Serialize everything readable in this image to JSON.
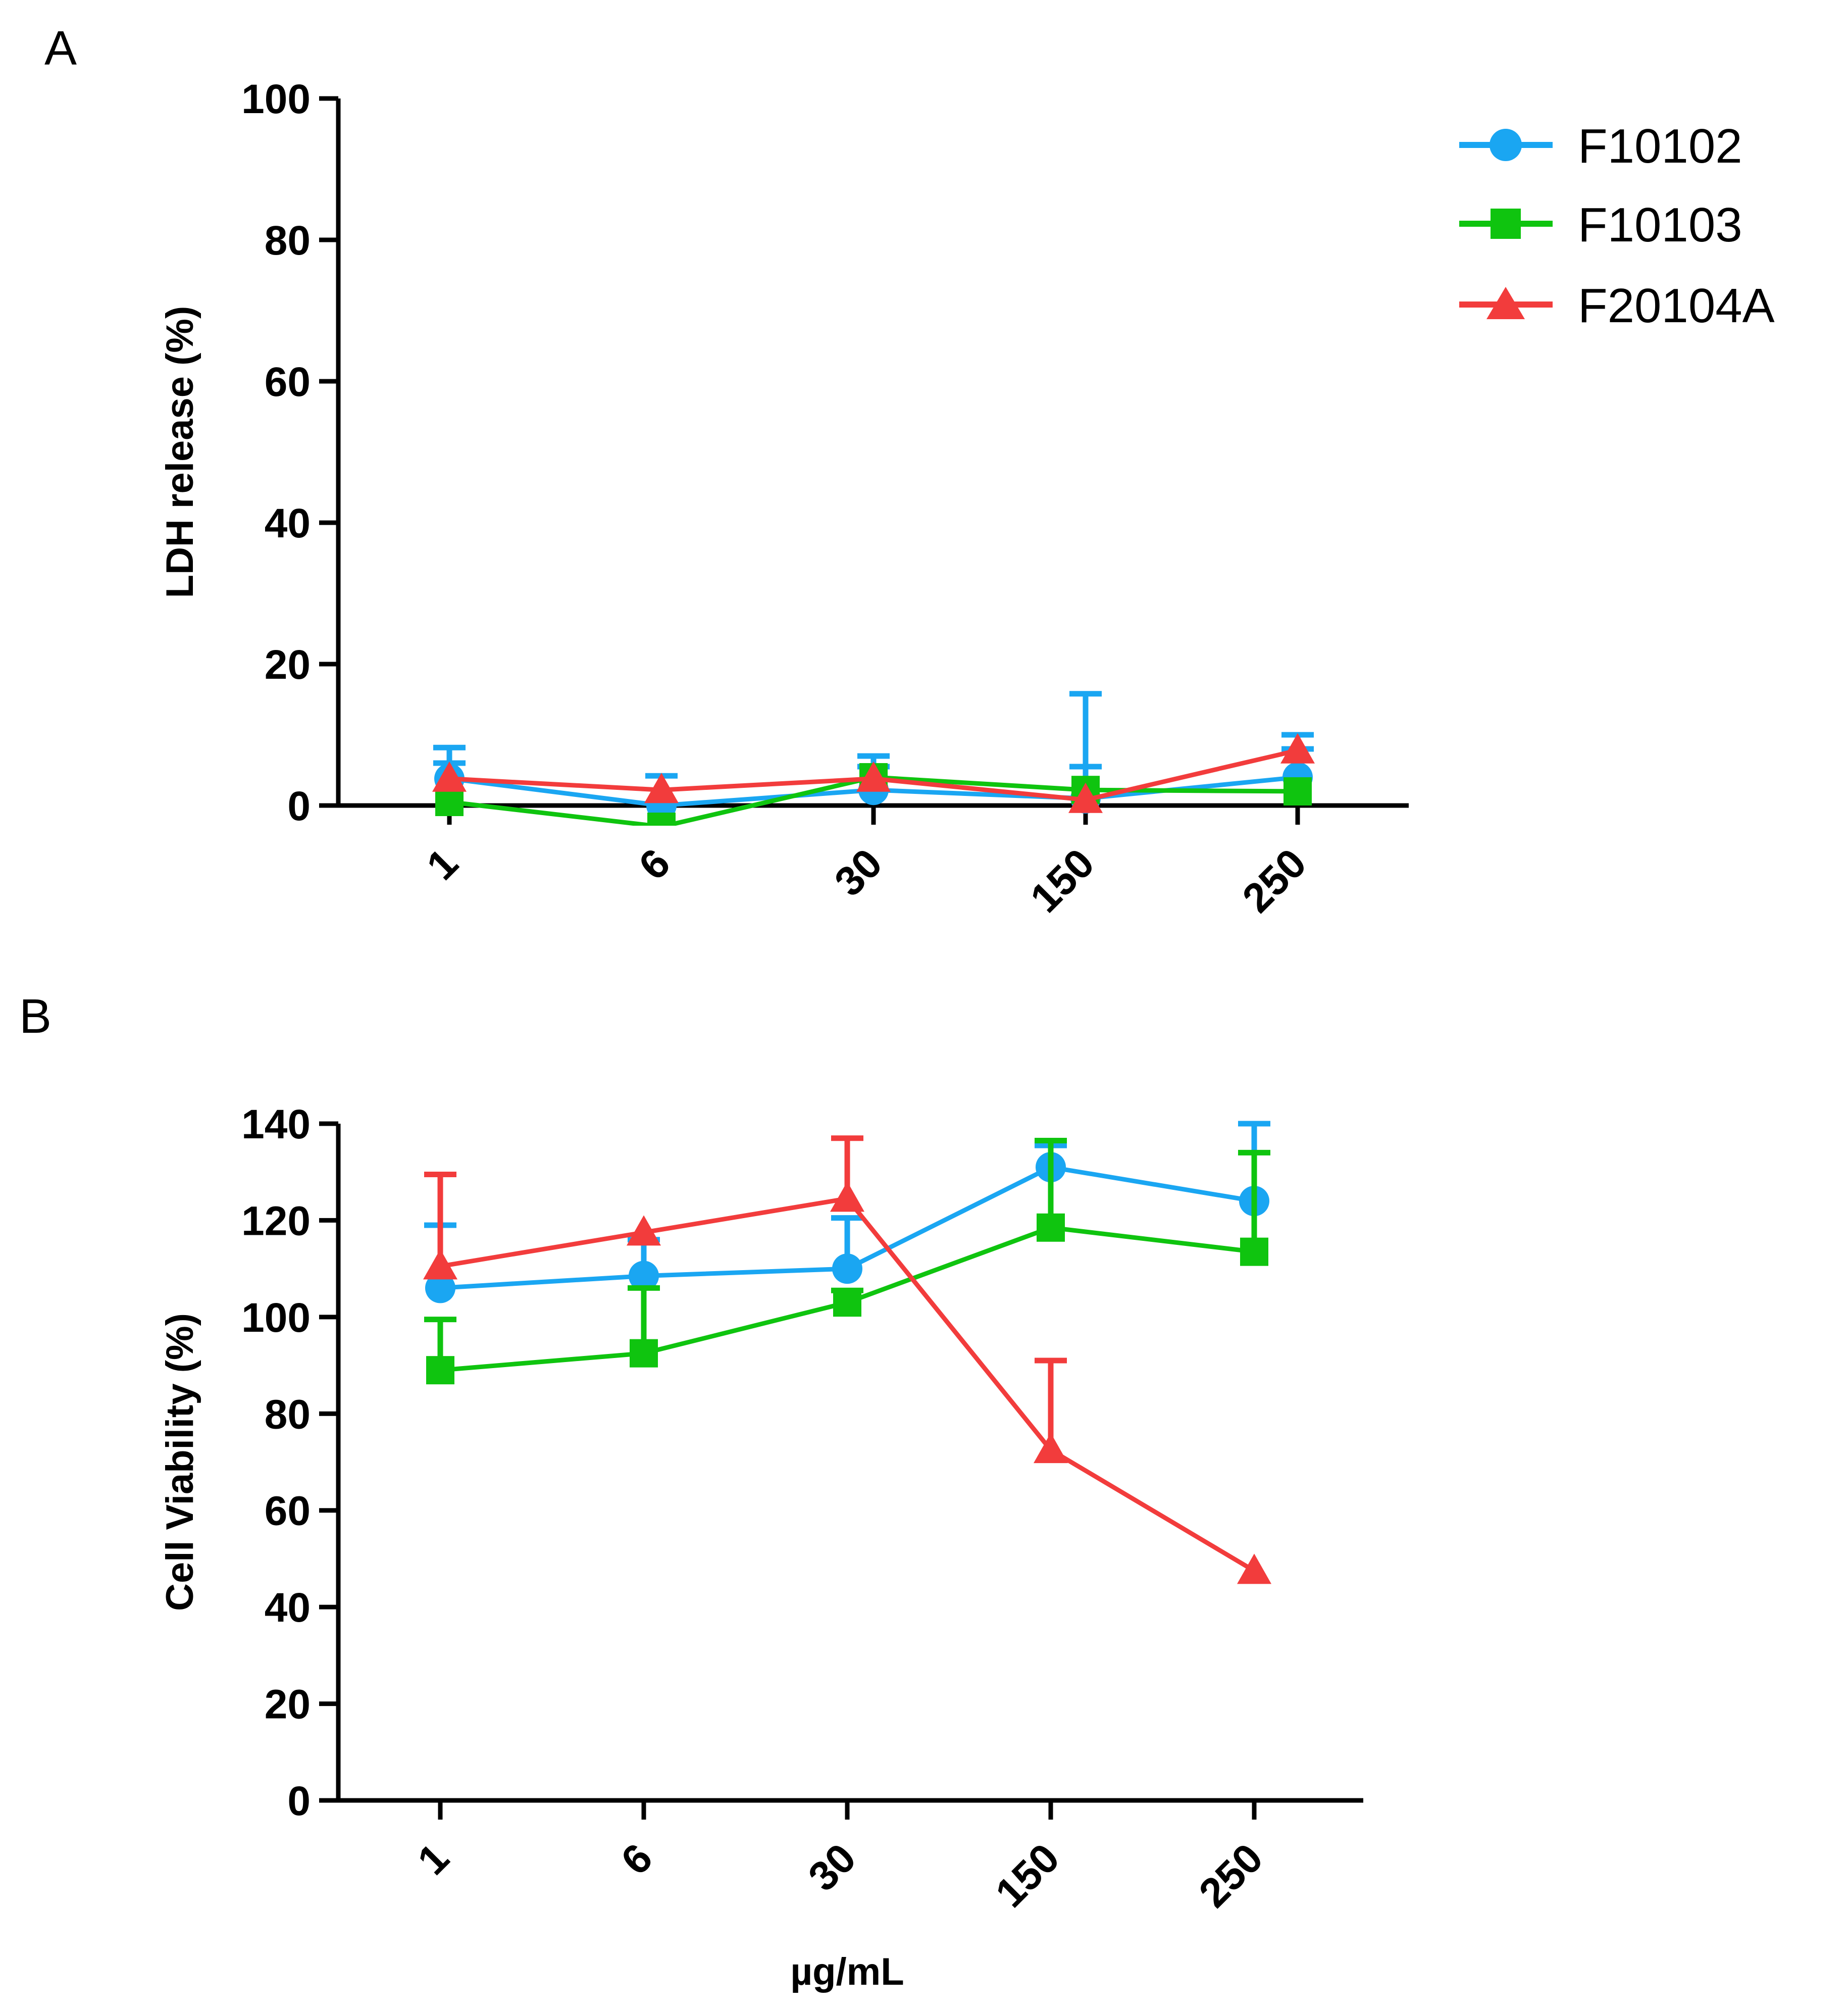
{
  "legend": [
    {
      "label": "F10102",
      "color": "#1aa6f2",
      "marker": "circle"
    },
    {
      "label": "F10103",
      "color": "#0fc40f",
      "marker": "square"
    },
    {
      "label": "F20104A",
      "color": "#f23c3c",
      "marker": "triangle"
    }
  ],
  "chart_data": [
    {
      "panel": "A",
      "type": "line",
      "ylabel": "LDH release (%)",
      "xlabel": "",
      "categories": [
        "1",
        "6",
        "30",
        "150",
        "250"
      ],
      "ylim": [
        0,
        100
      ],
      "yticks": [
        0,
        20,
        40,
        60,
        80,
        100
      ],
      "grid": false,
      "error_bars": "upper only",
      "series": [
        {
          "name": "F10102",
          "color": "#1aa6f2",
          "marker": "circle",
          "values": [
            3.8,
            0,
            2.2,
            1.0,
            4.0
          ],
          "err": [
            4.4,
            4.2,
            4.8,
            14.8,
            6.0
          ],
          "err_extra_caps": [
            6.0,
            null,
            5.5,
            5.5,
            8.0
          ]
        },
        {
          "name": "F10103",
          "color": "#0fc40f",
          "marker": "square",
          "values": [
            0.5,
            -3.0,
            4.0,
            2.2,
            2.0
          ],
          "err": [
            0,
            0,
            0,
            0,
            0
          ]
        },
        {
          "name": "F20104A",
          "color": "#f23c3c",
          "marker": "triangle",
          "values": [
            3.8,
            2.2,
            3.8,
            0.8,
            7.8
          ],
          "err": [
            0,
            0,
            0,
            0,
            0
          ]
        }
      ]
    },
    {
      "panel": "B",
      "type": "line",
      "ylabel": "Cell Viability (%)",
      "xlabel": "µg/mL",
      "categories": [
        "1",
        "6",
        "30",
        "150",
        "250"
      ],
      "ylim": [
        0,
        140
      ],
      "yticks": [
        0,
        20,
        40,
        60,
        80,
        100,
        120,
        140
      ],
      "grid": false,
      "error_bars": "upper only",
      "series": [
        {
          "name": "F10102",
          "color": "#1aa6f2",
          "marker": "circle",
          "values": [
            106,
            108.5,
            110,
            131,
            124
          ],
          "err": [
            13,
            7.5,
            10.5,
            4.5,
            16
          ]
        },
        {
          "name": "F10103",
          "color": "#0fc40f",
          "marker": "square",
          "values": [
            89,
            92.5,
            103,
            118.5,
            113.5
          ],
          "err": [
            10.5,
            13.5,
            2.5,
            18,
            20.5
          ]
        },
        {
          "name": "F20104A",
          "color": "#f23c3c",
          "marker": "triangle",
          "values": [
            110.5,
            117.5,
            124.5,
            72.5,
            47.5
          ],
          "err": [
            19,
            0,
            12.5,
            18.5,
            0
          ]
        }
      ]
    }
  ]
}
